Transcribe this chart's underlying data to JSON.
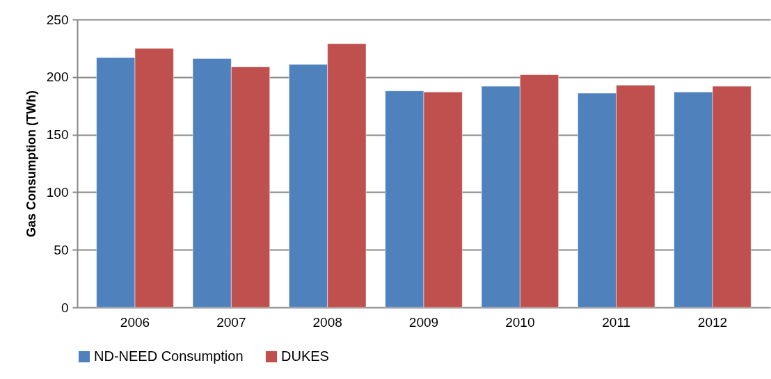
{
  "chart_data": {
    "type": "bar",
    "ylabel": "Gas Consumption (TWh)",
    "categories": [
      "2006",
      "2007",
      "2008",
      "2009",
      "2010",
      "2011",
      "2012"
    ],
    "series": [
      {
        "name": "ND-NEED Consumption",
        "color": "#4f81bd",
        "values": [
          217,
          216,
          211,
          188,
          192,
          186,
          187
        ]
      },
      {
        "name": "DUKES",
        "color": "#c0504d",
        "values": [
          225,
          209,
          229,
          187,
          202,
          193,
          192
        ]
      }
    ],
    "ylim": [
      0,
      250
    ],
    "yticks": [
      0,
      50,
      100,
      150,
      200,
      250
    ],
    "grid": "y",
    "legend": "bottom"
  }
}
